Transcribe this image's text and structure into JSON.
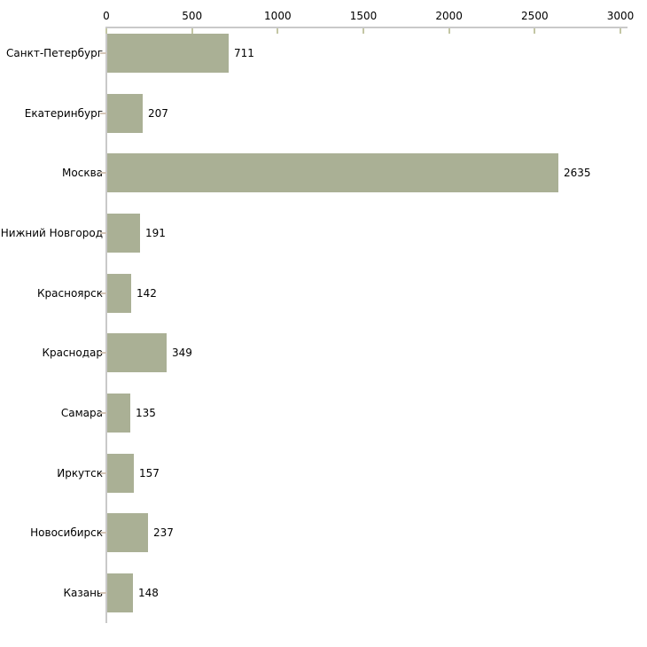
{
  "chart_data": {
    "type": "bar",
    "orientation": "horizontal",
    "title": "",
    "xlabel": "",
    "ylabel": "",
    "categories": [
      "Санкт-Петербург",
      "Екатеринбург",
      "Москва",
      "Нижний Новгород",
      "Красноярск",
      "Краснодар",
      "Самара",
      "Иркутск",
      "Новосибирск",
      "Казань"
    ],
    "values": [
      711,
      207,
      2635,
      191,
      142,
      349,
      135,
      157,
      237,
      148
    ],
    "value_labels_shown": true,
    "x_ticks": [
      0,
      500,
      1000,
      1500,
      2000,
      2500,
      3000
    ],
    "xlim": [
      0,
      3000
    ],
    "grid": false,
    "legend": null,
    "colors": {
      "bar": "#aab095",
      "axis": "#c9c9c9",
      "x_tick": "#c3c6a4",
      "y_tick": "#d5c6b8",
      "text": "#000000",
      "background": "#ffffff"
    }
  }
}
